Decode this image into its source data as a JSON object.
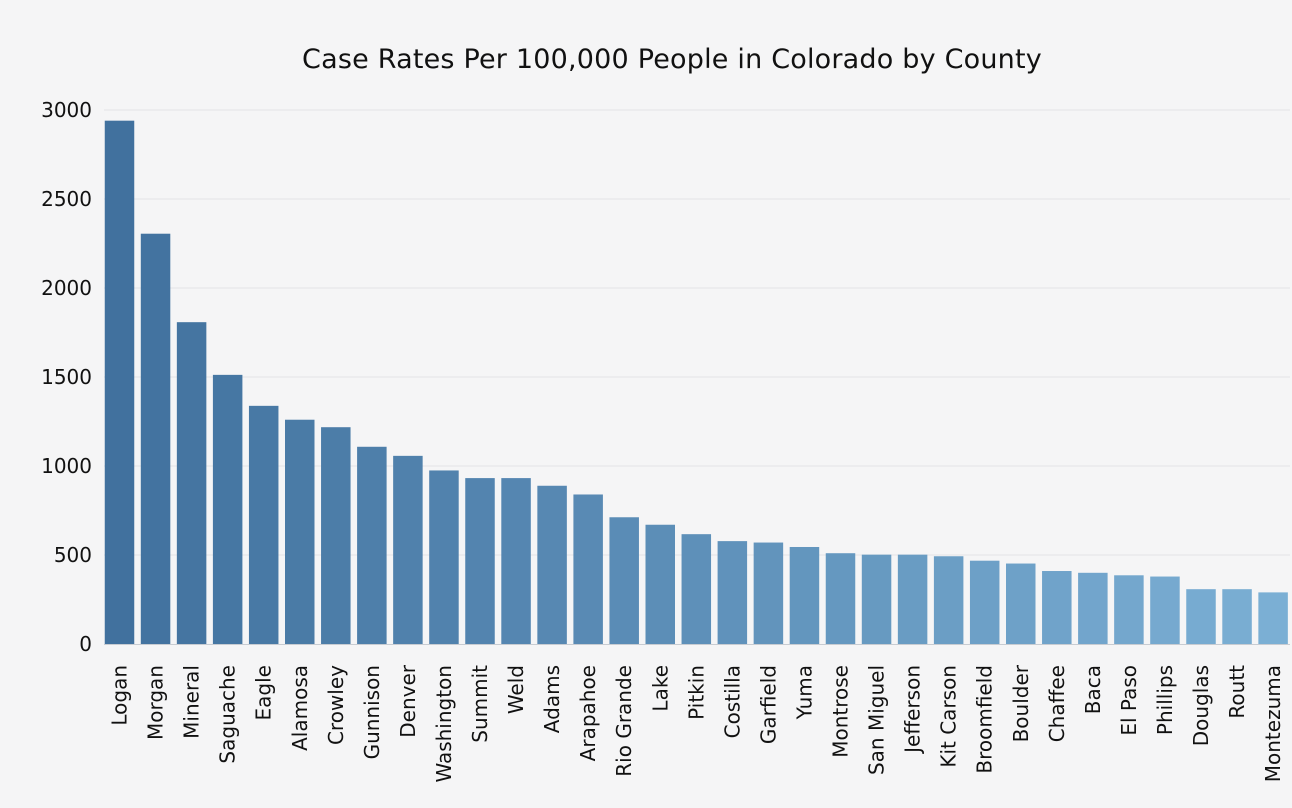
{
  "chart_data": {
    "type": "bar",
    "title": "Case Rates Per 100,000 People in Colorado by County",
    "xlabel": "",
    "ylabel": "",
    "ylim": [
      0,
      3000
    ],
    "yticks": [
      0,
      500,
      1000,
      1500,
      2000,
      2500,
      3000
    ],
    "grid": true,
    "categories": [
      "Logan",
      "Morgan",
      "Mineral",
      "Saguache",
      "Eagle",
      "Alamosa",
      "Crowley",
      "Gunnison",
      "Denver",
      "Washington",
      "Summit",
      "Weld",
      "Adams",
      "Arapahoe",
      "Rio Grande",
      "Lake",
      "Pitkin",
      "Costilla",
      "Garfield",
      "Yuma",
      "Montrose",
      "San Miguel",
      "Jefferson",
      "Kit Carson",
      "Broomfield",
      "Boulder",
      "Chaffee",
      "Baca",
      "El Paso",
      "Phillips",
      "Douglas",
      "Routt",
      "Montezuma"
    ],
    "values": [
      2940,
      2305,
      1808,
      1512,
      1338,
      1260,
      1218,
      1108,
      1057,
      975,
      932,
      932,
      889,
      840,
      712,
      670,
      617,
      578,
      570,
      545,
      510,
      502,
      502,
      493,
      468,
      452,
      410,
      400,
      386,
      379,
      308,
      308,
      290
    ],
    "colors": {
      "dark": "#41719e",
      "light": "#7bafd4",
      "grid": "#e3e3e6",
      "background": "#f5f5f6"
    }
  }
}
